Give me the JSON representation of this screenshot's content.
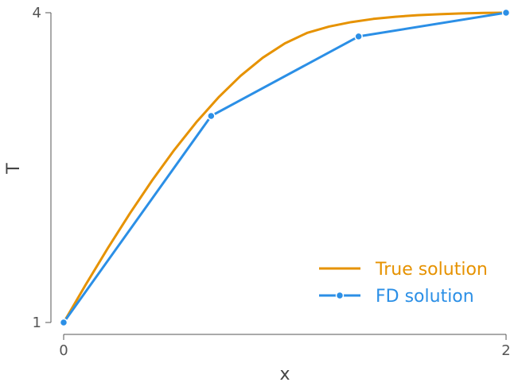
{
  "chart_data": {
    "type": "line",
    "title": "",
    "xlabel": "x",
    "ylabel": "T",
    "xlim": [
      0,
      2
    ],
    "ylim": [
      1,
      4
    ],
    "xticks": [
      "0",
      "2"
    ],
    "yticks": [
      "1",
      "4"
    ],
    "grid": false,
    "legend": "bottom-right",
    "series": [
      {
        "name": "True solution",
        "color": "#E69200",
        "marker": false,
        "x": [
          0,
          0.1,
          0.2,
          0.3,
          0.4,
          0.5,
          0.6,
          0.7,
          0.8,
          0.9,
          1.0,
          1.1,
          1.2,
          1.3,
          1.4,
          1.5,
          1.6,
          1.7,
          1.8,
          1.9,
          2.0
        ],
        "y": [
          1.0,
          1.367,
          1.721,
          2.058,
          2.376,
          2.671,
          2.94,
          3.18,
          3.389,
          3.564,
          3.703,
          3.804,
          3.866,
          3.909,
          3.94,
          3.961,
          3.976,
          3.986,
          3.993,
          3.998,
          4.0
        ]
      },
      {
        "name": "FD solution",
        "color": "#2B8FE6",
        "marker": true,
        "x": [
          0,
          0.6667,
          1.3333,
          2.0
        ],
        "y": [
          1.0,
          3.0,
          3.77,
          4.0
        ]
      }
    ]
  }
}
